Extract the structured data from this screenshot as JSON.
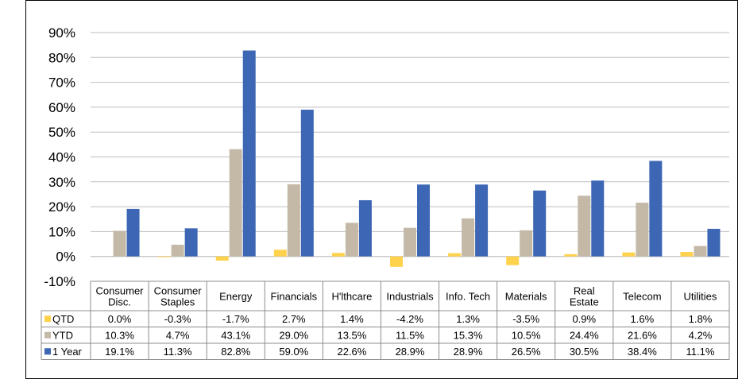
{
  "chart_data": {
    "type": "bar",
    "categories": [
      "Consumer Disc.",
      "Consumer Staples",
      "Energy",
      "Financials",
      "H'lthcare",
      "Industrials",
      "Info. Tech",
      "Materials",
      "Real Estate",
      "Telecom",
      "Utilities"
    ],
    "category_lines": [
      [
        "Consumer",
        "Disc."
      ],
      [
        "Consumer",
        "Staples"
      ],
      [
        "Energy"
      ],
      [
        "Financials"
      ],
      [
        "H'lthcare"
      ],
      [
        "Industrials"
      ],
      [
        "Info. Tech"
      ],
      [
        "Materials"
      ],
      [
        "Real",
        "Estate"
      ],
      [
        "Telecom"
      ],
      [
        "Utilities"
      ]
    ],
    "series": [
      {
        "name": "QTD",
        "color": "#FFD24D",
        "values": [
          0.0,
          -0.3,
          -1.7,
          2.7,
          1.4,
          -4.2,
          1.3,
          -3.5,
          0.9,
          1.6,
          1.8
        ],
        "labels": [
          "0.0%",
          "-0.3%",
          "-1.7%",
          "2.7%",
          "1.4%",
          "-4.2%",
          "1.3%",
          "-3.5%",
          "0.9%",
          "1.6%",
          "1.8%"
        ]
      },
      {
        "name": "YTD",
        "color": "#C4B9A7",
        "values": [
          10.3,
          4.7,
          43.1,
          29.0,
          13.5,
          11.5,
          15.3,
          10.5,
          24.4,
          21.6,
          4.2
        ],
        "labels": [
          "10.3%",
          "4.7%",
          "43.1%",
          "29.0%",
          "13.5%",
          "11.5%",
          "15.3%",
          "10.5%",
          "24.4%",
          "21.6%",
          "4.2%"
        ]
      },
      {
        "name": "1 Year",
        "color": "#3D67B4",
        "values": [
          19.1,
          11.3,
          82.8,
          59.0,
          22.6,
          28.9,
          28.9,
          26.5,
          30.5,
          38.4,
          11.1
        ],
        "labels": [
          "19.1%",
          "11.3%",
          "82.8%",
          "59.0%",
          "22.6%",
          "28.9%",
          "28.9%",
          "26.5%",
          "30.5%",
          "38.4%",
          "11.1%"
        ]
      }
    ],
    "y_ticks": [
      "90%",
      "80%",
      "70%",
      "60%",
      "50%",
      "40%",
      "30%",
      "20%",
      "10%",
      "0%",
      "-10%"
    ],
    "ylim": [
      -10,
      90
    ],
    "grid": true,
    "legend": "data-table"
  }
}
